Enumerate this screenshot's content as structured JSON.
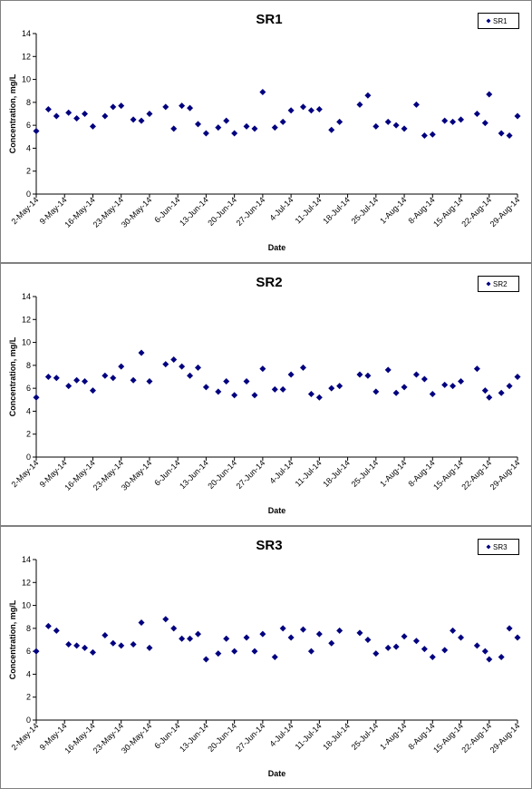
{
  "chart_data": [
    {
      "type": "scatter",
      "title": "SR1",
      "x_label": "Date",
      "y_label": "Concentration, mg/L",
      "x": [
        "2014-05-02",
        "2014-05-05",
        "2014-05-07",
        "2014-05-10",
        "2014-05-12",
        "2014-05-14",
        "2014-05-16",
        "2014-05-19",
        "2014-05-21",
        "2014-05-23",
        "2014-05-26",
        "2014-05-28",
        "2014-05-30",
        "2014-06-03",
        "2014-06-05",
        "2014-06-07",
        "2014-06-09",
        "2014-06-11",
        "2014-06-13",
        "2014-06-16",
        "2014-06-18",
        "2014-06-20",
        "2014-06-23",
        "2014-06-25",
        "2014-06-27",
        "2014-06-30",
        "2014-07-02",
        "2014-07-04",
        "2014-07-07",
        "2014-07-09",
        "2014-07-11",
        "2014-07-14",
        "2014-07-16",
        "2014-07-21",
        "2014-07-23",
        "2014-07-25",
        "2014-07-28",
        "2014-07-30",
        "2014-08-01",
        "2014-08-04",
        "2014-08-06",
        "2014-08-08",
        "2014-08-11",
        "2014-08-13",
        "2014-08-15",
        "2014-08-19",
        "2014-08-21",
        "2014-08-22",
        "2014-08-25",
        "2014-08-27",
        "2014-08-29"
      ],
      "series": [
        {
          "name": "SR1",
          "color": "#00007f",
          "values": [
            5.5,
            7.4,
            6.8,
            7.1,
            6.6,
            7.0,
            5.9,
            6.8,
            7.6,
            7.7,
            6.5,
            6.4,
            7.0,
            7.6,
            5.7,
            7.7,
            7.5,
            6.1,
            5.3,
            5.8,
            6.4,
            5.3,
            5.9,
            5.7,
            8.9,
            5.8,
            6.3,
            7.3,
            7.6,
            7.3,
            7.4,
            5.6,
            6.3,
            7.8,
            8.6,
            5.9,
            6.3,
            6.0,
            5.7,
            7.8,
            5.1,
            5.2,
            6.4,
            6.3,
            6.5,
            7.0,
            6.2,
            8.7,
            5.3,
            5.1,
            6.8
          ]
        }
      ],
      "xlim": [
        "2014-05-02",
        "2014-08-29"
      ],
      "xticks": [
        {
          "value": "2014-05-02",
          "label": "2-May-14"
        },
        {
          "value": "2014-05-09",
          "label": "9-May-14"
        },
        {
          "value": "2014-05-16",
          "label": "16-May-14"
        },
        {
          "value": "2014-05-23",
          "label": "23-May-14"
        },
        {
          "value": "2014-05-30",
          "label": "30-May-14"
        },
        {
          "value": "2014-06-06",
          "label": "6-Jun-14"
        },
        {
          "value": "2014-06-13",
          "label": "13-Jun-14"
        },
        {
          "value": "2014-06-20",
          "label": "20-Jun-14"
        },
        {
          "value": "2014-06-27",
          "label": "27-Jun-14"
        },
        {
          "value": "2014-07-04",
          "label": "4-Jul-14"
        },
        {
          "value": "2014-07-11",
          "label": "11-Jul-14"
        },
        {
          "value": "2014-07-18",
          "label": "18-Jul-14"
        },
        {
          "value": "2014-07-25",
          "label": "25-Jul-14"
        },
        {
          "value": "2014-08-01",
          "label": "1-Aug-14"
        },
        {
          "value": "2014-08-08",
          "label": "8-Aug-14"
        },
        {
          "value": "2014-08-15",
          "label": "15-Aug-14"
        },
        {
          "value": "2014-08-22",
          "label": "22-Aug-14"
        },
        {
          "value": "2014-08-29",
          "label": "29-Aug-14"
        }
      ],
      "ylim": [
        0,
        14
      ],
      "yticks": [
        0,
        2,
        4,
        6,
        8,
        10,
        12,
        14
      ],
      "legend": "upper right"
    },
    {
      "type": "scatter",
      "title": "SR2",
      "x_label": "Date",
      "y_label": "Concentration, mg/L",
      "x": [
        "2014-05-02",
        "2014-05-05",
        "2014-05-07",
        "2014-05-10",
        "2014-05-12",
        "2014-05-14",
        "2014-05-16",
        "2014-05-19",
        "2014-05-21",
        "2014-05-23",
        "2014-05-26",
        "2014-05-28",
        "2014-05-30",
        "2014-06-03",
        "2014-06-05",
        "2014-06-07",
        "2014-06-09",
        "2014-06-11",
        "2014-06-13",
        "2014-06-16",
        "2014-06-18",
        "2014-06-20",
        "2014-06-23",
        "2014-06-25",
        "2014-06-27",
        "2014-06-30",
        "2014-07-02",
        "2014-07-04",
        "2014-07-07",
        "2014-07-09",
        "2014-07-11",
        "2014-07-14",
        "2014-07-16",
        "2014-07-21",
        "2014-07-23",
        "2014-07-25",
        "2014-07-28",
        "2014-07-30",
        "2014-08-01",
        "2014-08-04",
        "2014-08-06",
        "2014-08-08",
        "2014-08-11",
        "2014-08-13",
        "2014-08-15",
        "2014-08-19",
        "2014-08-21",
        "2014-08-22",
        "2014-08-25",
        "2014-08-27",
        "2014-08-29"
      ],
      "series": [
        {
          "name": "SR2",
          "color": "#00007f",
          "values": [
            5.2,
            7.0,
            6.9,
            6.2,
            6.7,
            6.6,
            5.8,
            7.1,
            6.9,
            7.9,
            6.7,
            9.1,
            6.6,
            8.1,
            8.5,
            7.9,
            7.1,
            7.8,
            6.1,
            5.7,
            6.6,
            5.4,
            6.6,
            5.4,
            7.7,
            5.9,
            5.9,
            7.2,
            7.8,
            5.5,
            5.2,
            6.0,
            6.2,
            7.2,
            7.1,
            5.7,
            7.6,
            5.6,
            6.1,
            7.2,
            6.8,
            5.5,
            6.3,
            6.2,
            6.6,
            7.7,
            5.8,
            5.2,
            5.6,
            6.2,
            7.0
          ]
        }
      ],
      "xlim": [
        "2014-05-02",
        "2014-08-29"
      ],
      "xticks": [
        {
          "value": "2014-05-02",
          "label": "2-May-14"
        },
        {
          "value": "2014-05-09",
          "label": "9-May-14"
        },
        {
          "value": "2014-05-16",
          "label": "16-May-14"
        },
        {
          "value": "2014-05-23",
          "label": "23-May-14"
        },
        {
          "value": "2014-05-30",
          "label": "30-May-14"
        },
        {
          "value": "2014-06-06",
          "label": "6-Jun-14"
        },
        {
          "value": "2014-06-13",
          "label": "13-Jun-14"
        },
        {
          "value": "2014-06-20",
          "label": "20-Jun-14"
        },
        {
          "value": "2014-06-27",
          "label": "27-Jun-14"
        },
        {
          "value": "2014-07-04",
          "label": "4-Jul-14"
        },
        {
          "value": "2014-07-11",
          "label": "11-Jul-14"
        },
        {
          "value": "2014-07-18",
          "label": "18-Jul-14"
        },
        {
          "value": "2014-07-25",
          "label": "25-Jul-14"
        },
        {
          "value": "2014-08-01",
          "label": "1-Aug-14"
        },
        {
          "value": "2014-08-08",
          "label": "8-Aug-14"
        },
        {
          "value": "2014-08-15",
          "label": "15-Aug-14"
        },
        {
          "value": "2014-08-22",
          "label": "22-Aug-14"
        },
        {
          "value": "2014-08-29",
          "label": "29-Aug-14"
        }
      ],
      "ylim": [
        0,
        14
      ],
      "yticks": [
        0,
        2,
        4,
        6,
        8,
        10,
        12,
        14
      ],
      "legend": "upper right"
    },
    {
      "type": "scatter",
      "title": "SR3",
      "x_label": "Date",
      "y_label": "Concentration, mg/L",
      "x": [
        "2014-05-02",
        "2014-05-05",
        "2014-05-07",
        "2014-05-10",
        "2014-05-12",
        "2014-05-14",
        "2014-05-16",
        "2014-05-19",
        "2014-05-21",
        "2014-05-23",
        "2014-05-26",
        "2014-05-28",
        "2014-05-30",
        "2014-06-03",
        "2014-06-05",
        "2014-06-07",
        "2014-06-09",
        "2014-06-11",
        "2014-06-13",
        "2014-06-16",
        "2014-06-18",
        "2014-06-20",
        "2014-06-23",
        "2014-06-25",
        "2014-06-27",
        "2014-06-30",
        "2014-07-02",
        "2014-07-04",
        "2014-07-07",
        "2014-07-09",
        "2014-07-11",
        "2014-07-14",
        "2014-07-16",
        "2014-07-21",
        "2014-07-23",
        "2014-07-25",
        "2014-07-28",
        "2014-07-30",
        "2014-08-01",
        "2014-08-04",
        "2014-08-06",
        "2014-08-08",
        "2014-08-11",
        "2014-08-13",
        "2014-08-15",
        "2014-08-19",
        "2014-08-21",
        "2014-08-22",
        "2014-08-25",
        "2014-08-27",
        "2014-08-29"
      ],
      "series": [
        {
          "name": "SR3",
          "color": "#00007f",
          "values": [
            6.0,
            8.2,
            7.8,
            6.6,
            6.5,
            6.3,
            5.9,
            7.4,
            6.7,
            6.5,
            6.6,
            8.5,
            6.3,
            8.8,
            8.0,
            7.1,
            7.1,
            7.5,
            5.3,
            5.8,
            7.1,
            6.0,
            7.2,
            6.0,
            7.5,
            5.5,
            8.0,
            7.2,
            7.9,
            6.0,
            7.5,
            6.7,
            7.8,
            7.6,
            7.0,
            5.8,
            6.3,
            6.4,
            7.3,
            6.9,
            6.2,
            5.5,
            6.1,
            7.8,
            7.2,
            6.5,
            6.0,
            5.3,
            5.5,
            8.0,
            7.2
          ]
        }
      ],
      "xlim": [
        "2014-05-02",
        "2014-08-29"
      ],
      "xticks": [
        {
          "value": "2014-05-02",
          "label": "2-May-14"
        },
        {
          "value": "2014-05-09",
          "label": "9-May-14"
        },
        {
          "value": "2014-05-16",
          "label": "16-May-14"
        },
        {
          "value": "2014-05-23",
          "label": "23-May-14"
        },
        {
          "value": "2014-05-30",
          "label": "30-May-14"
        },
        {
          "value": "2014-06-06",
          "label": "6-Jun-14"
        },
        {
          "value": "2014-06-13",
          "label": "13-Jun-14"
        },
        {
          "value": "2014-06-20",
          "label": "20-Jun-14"
        },
        {
          "value": "2014-06-27",
          "label": "27-Jun-14"
        },
        {
          "value": "2014-07-04",
          "label": "4-Jul-14"
        },
        {
          "value": "2014-07-11",
          "label": "11-Jul-14"
        },
        {
          "value": "2014-07-18",
          "label": "18-Jul-14"
        },
        {
          "value": "2014-07-25",
          "label": "25-Jul-14"
        },
        {
          "value": "2014-08-01",
          "label": "1-Aug-14"
        },
        {
          "value": "2014-08-08",
          "label": "8-Aug-14"
        },
        {
          "value": "2014-08-15",
          "label": "15-Aug-14"
        },
        {
          "value": "2014-08-22",
          "label": "22-Aug-14"
        },
        {
          "value": "2014-08-29",
          "label": "29-Aug-14"
        }
      ],
      "ylim": [
        0,
        14
      ],
      "yticks": [
        0,
        2,
        4,
        6,
        8,
        10,
        12,
        14
      ],
      "legend": "upper right"
    }
  ]
}
